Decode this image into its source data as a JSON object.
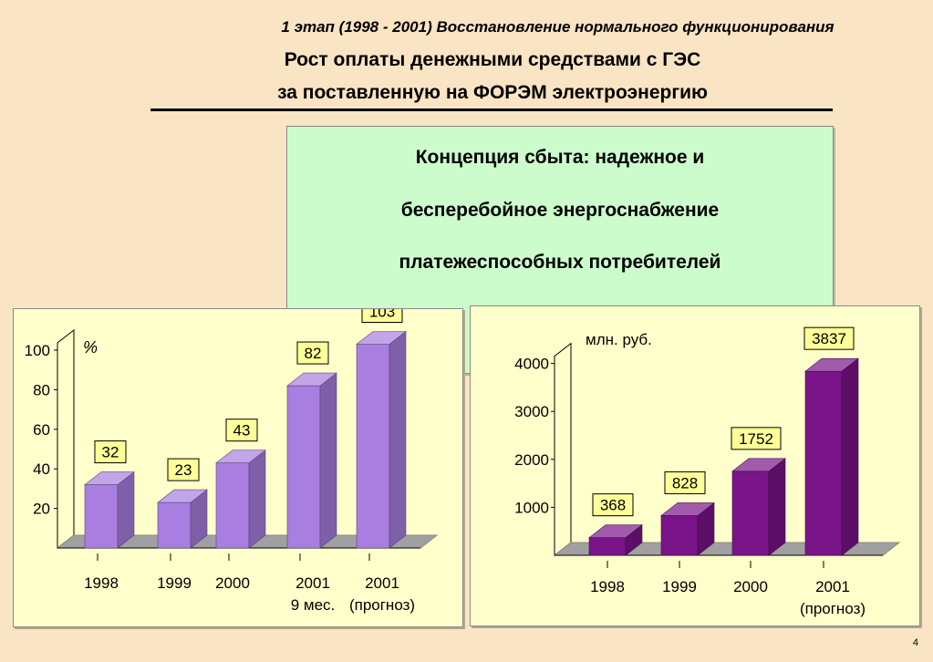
{
  "slide": {
    "stage_title": "1 этап (1998 - 2001) Восстановление нормального функционирования",
    "title_line1": "Рост оплаты денежными средствами с  ГЭС",
    "title_line2": "за поставленную на ФОРЭМ электроэнергию",
    "page_number": "4",
    "colors": {
      "background": "#f9e4c3",
      "concept_box": "#ccfccc",
      "chart_panel": "#ffffcc",
      "label_box": "#ffff99"
    }
  },
  "concept": {
    "line1": "Концепция сбыта: надежное и",
    "line2": "бесперебойное энергоснабжение",
    "line3": "платежеспособных потребителей"
  },
  "chart_data": [
    {
      "type": "bar",
      "unit_label": "%",
      "categories": [
        "1998",
        "1999",
        "2000",
        "2001\n9 мес.",
        "2001\n(прогноз)"
      ],
      "values": [
        32,
        23,
        43,
        82,
        103
      ],
      "value_labels": [
        "32",
        "23",
        "43",
        "82",
        "103"
      ],
      "y_ticks": [
        "20",
        "40",
        "60",
        "80",
        "100"
      ],
      "ylim": [
        0,
        100
      ],
      "bar_color": "#a87ee0",
      "style": "3d"
    },
    {
      "type": "bar",
      "unit_label": "млн. руб.",
      "categories": [
        "1998",
        "1999",
        "2000",
        "2001\n(прогноз)"
      ],
      "values": [
        368,
        828,
        1752,
        3837
      ],
      "value_labels": [
        "368",
        "828",
        "1752",
        "3837"
      ],
      "y_ticks": [
        "1000",
        "2000",
        "3000",
        "4000"
      ],
      "ylim": [
        0,
        4000
      ],
      "bar_color": "#7a1489",
      "style": "3d"
    }
  ]
}
